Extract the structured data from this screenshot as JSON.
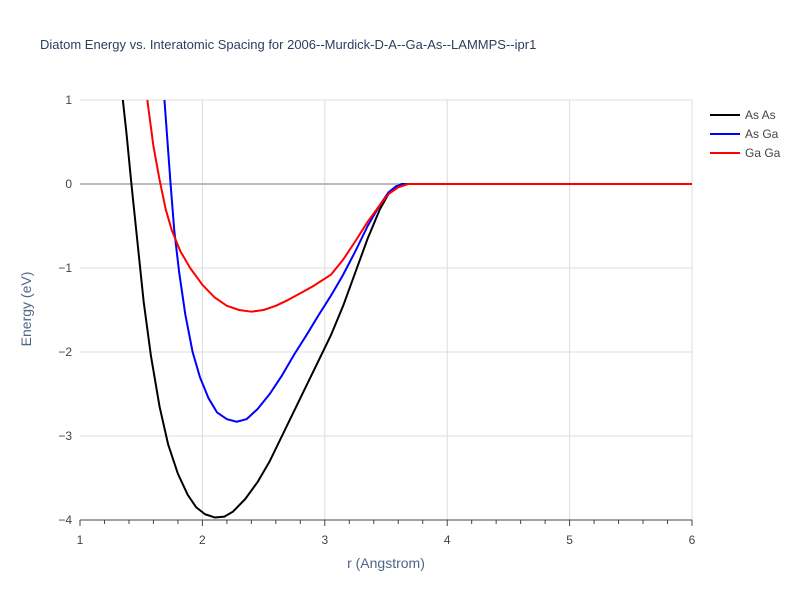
{
  "chart_data": {
    "type": "line",
    "title": "Diatom Energy vs. Interatomic Spacing for 2006--Murdick-D-A--Ga-As--LAMMPS--ipr1",
    "xlabel": "r (Angstrom)",
    "ylabel": "Energy (eV)",
    "xlim": [
      1,
      6
    ],
    "ylim": [
      -4,
      1
    ],
    "x_ticks": [
      "1",
      "2",
      "3",
      "4",
      "5",
      "6"
    ],
    "y_ticks": [
      "−4",
      "−3",
      "−2",
      "−1",
      "0",
      "1"
    ],
    "grid": true,
    "legend_position": "top-right",
    "series": [
      {
        "name": "As As",
        "color": "#000000",
        "points": [
          [
            1.35,
            1.0
          ],
          [
            1.38,
            0.6
          ],
          [
            1.42,
            0.0
          ],
          [
            1.47,
            -0.7
          ],
          [
            1.52,
            -1.4
          ],
          [
            1.58,
            -2.05
          ],
          [
            1.65,
            -2.65
          ],
          [
            1.72,
            -3.1
          ],
          [
            1.8,
            -3.45
          ],
          [
            1.88,
            -3.7
          ],
          [
            1.95,
            -3.85
          ],
          [
            2.02,
            -3.93
          ],
          [
            2.1,
            -3.97
          ],
          [
            2.18,
            -3.96
          ],
          [
            2.25,
            -3.9
          ],
          [
            2.35,
            -3.75
          ],
          [
            2.45,
            -3.55
          ],
          [
            2.55,
            -3.3
          ],
          [
            2.65,
            -3.0
          ],
          [
            2.75,
            -2.7
          ],
          [
            2.85,
            -2.4
          ],
          [
            2.95,
            -2.1
          ],
          [
            3.05,
            -1.8
          ],
          [
            3.15,
            -1.45
          ],
          [
            3.25,
            -1.05
          ],
          [
            3.35,
            -0.65
          ],
          [
            3.45,
            -0.3
          ],
          [
            3.52,
            -0.12
          ],
          [
            3.58,
            -0.03
          ],
          [
            3.63,
            0.0
          ],
          [
            3.7,
            0.0
          ],
          [
            4.0,
            0.0
          ],
          [
            5.0,
            0.0
          ],
          [
            6.0,
            0.0
          ]
        ]
      },
      {
        "name": "As Ga",
        "color": "#0000ff",
        "points": [
          [
            1.69,
            1.0
          ],
          [
            1.71,
            0.6
          ],
          [
            1.74,
            0.0
          ],
          [
            1.77,
            -0.55
          ],
          [
            1.81,
            -1.05
          ],
          [
            1.86,
            -1.55
          ],
          [
            1.92,
            -2.0
          ],
          [
            1.98,
            -2.3
          ],
          [
            2.05,
            -2.55
          ],
          [
            2.12,
            -2.72
          ],
          [
            2.2,
            -2.8
          ],
          [
            2.28,
            -2.83
          ],
          [
            2.36,
            -2.8
          ],
          [
            2.45,
            -2.68
          ],
          [
            2.55,
            -2.5
          ],
          [
            2.65,
            -2.28
          ],
          [
            2.75,
            -2.03
          ],
          [
            2.85,
            -1.8
          ],
          [
            2.95,
            -1.56
          ],
          [
            3.05,
            -1.33
          ],
          [
            3.15,
            -1.08
          ],
          [
            3.25,
            -0.8
          ],
          [
            3.35,
            -0.5
          ],
          [
            3.45,
            -0.25
          ],
          [
            3.52,
            -0.1
          ],
          [
            3.58,
            -0.03
          ],
          [
            3.65,
            0.0
          ],
          [
            4.0,
            0.0
          ],
          [
            5.0,
            0.0
          ],
          [
            6.0,
            0.0
          ]
        ]
      },
      {
        "name": "Ga Ga",
        "color": "#ff0000",
        "points": [
          [
            1.55,
            1.0
          ],
          [
            1.6,
            0.45
          ],
          [
            1.65,
            0.05
          ],
          [
            1.7,
            -0.3
          ],
          [
            1.75,
            -0.55
          ],
          [
            1.82,
            -0.8
          ],
          [
            1.9,
            -1.0
          ],
          [
            2.0,
            -1.2
          ],
          [
            2.1,
            -1.35
          ],
          [
            2.2,
            -1.45
          ],
          [
            2.3,
            -1.5
          ],
          [
            2.4,
            -1.52
          ],
          [
            2.5,
            -1.5
          ],
          [
            2.6,
            -1.45
          ],
          [
            2.7,
            -1.38
          ],
          [
            2.8,
            -1.3
          ],
          [
            2.9,
            -1.22
          ],
          [
            3.05,
            -1.08
          ],
          [
            3.15,
            -0.9
          ],
          [
            3.25,
            -0.68
          ],
          [
            3.35,
            -0.45
          ],
          [
            3.45,
            -0.25
          ],
          [
            3.52,
            -0.12
          ],
          [
            3.6,
            -0.04
          ],
          [
            3.68,
            0.0
          ],
          [
            4.0,
            0.0
          ],
          [
            5.0,
            0.0
          ],
          [
            6.0,
            0.0
          ]
        ]
      }
    ]
  }
}
